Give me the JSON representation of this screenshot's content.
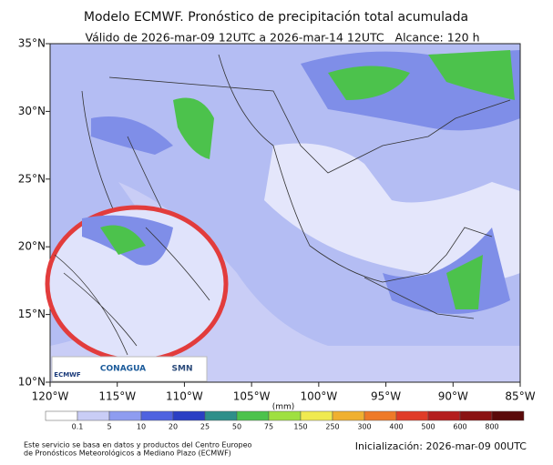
{
  "header": {
    "title": "Modelo ECMWF. Pronóstico de precipitación total acumulada",
    "subtitle": "Válido de 2026-mar-09 12UTC a 2026-mar-14 12UTC   Alcance: 120 h"
  },
  "map": {
    "lat_labels": [
      "35°N",
      "30°N",
      "25°N",
      "20°N",
      "15°N",
      "10°N"
    ],
    "lon_labels": [
      "120°W",
      "115°W",
      "110°W",
      "105°W",
      "100°W",
      "95°W",
      "90°W",
      "85°W"
    ],
    "logos": [
      "ECMWF",
      "CONAGUA",
      "SMN"
    ]
  },
  "colorbar": {
    "unit": "(mm)",
    "labels": [
      "0.1",
      "5",
      "10",
      "20",
      "25",
      "50",
      "75",
      "150",
      "250",
      "300",
      "400",
      "500",
      "600",
      "800"
    ],
    "colors": [
      "#ffffff",
      "#c9cdf6",
      "#8e9cf0",
      "#4f63e0",
      "#2a3fc4",
      "#2f8f8a",
      "#4cc24c",
      "#9fe040",
      "#f0ea50",
      "#f0b030",
      "#ee7a28",
      "#e03c28",
      "#b41e1e",
      "#8a1212",
      "#5a0a0a"
    ]
  },
  "footer": {
    "source": [
      "Este servicio se basa en datos y productos del Centro Europeo",
      "de Pronósticos Meteorológicos a Mediano Plazo (ECMWF)"
    ],
    "init": "Inicialización: 2026-mar-09 00UTC"
  }
}
